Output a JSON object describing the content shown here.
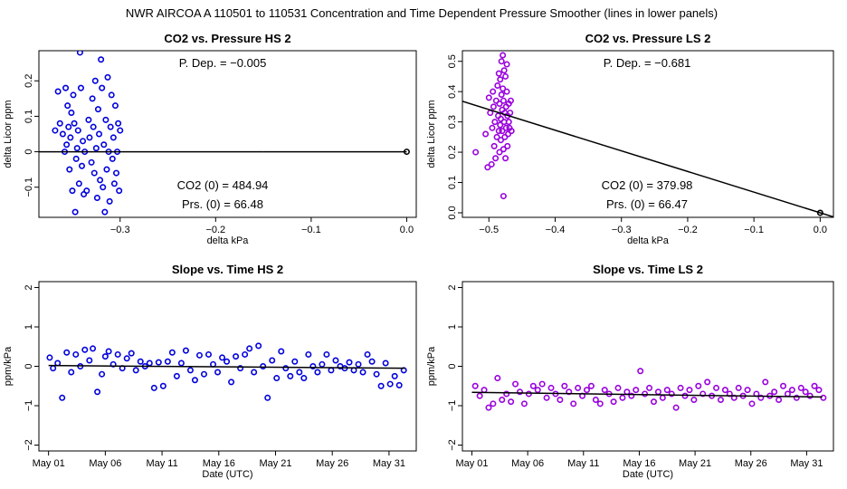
{
  "figure": {
    "title": "NWR   AIRCOA A   110501 to 110531   Concentration and Time Dependent Pressure Smoother (lines in lower panels)"
  },
  "colors": {
    "hs": "#0000dd",
    "ls": "#9900dd",
    "line": "#000000"
  },
  "chart_data": [
    {
      "id": "co2-hs",
      "type": "scatter",
      "title": "CO2 vs. Pressure HS 2",
      "xlabel": "delta kPa",
      "ylabel": "delta Licor ppm",
      "xlim": [
        -0.385,
        0.01
      ],
      "ylim": [
        -0.185,
        0.285
      ],
      "xticks": [
        -0.3,
        -0.2,
        -0.1,
        0.0
      ],
      "xtick_labels": [
        "-0.3",
        "-0.2",
        "-0.1",
        "0.0"
      ],
      "yticks": [
        -0.1,
        0.0,
        0.1,
        0.2
      ],
      "ytick_labels": [
        "-0.1",
        "0",
        "0.1",
        "0.2"
      ],
      "color": "hs",
      "annotations": {
        "pdep": "P. Dep. =  -0.005",
        "co2_0": "CO2 (0) =  484.94",
        "prs_0": "Prs. (0) =  66.48"
      },
      "fit_line": [
        [
          -0.385,
          0.0
        ],
        [
          -0.15,
          0.0
        ]
      ],
      "ref_line": [
        [
          -0.15,
          0.0
        ],
        [
          0.0,
          0.0
        ]
      ],
      "origin_point": [
        0.0,
        0.0
      ],
      "points": [
        [
          -0.368,
          0.06
        ],
        [
          -0.365,
          0.17
        ],
        [
          -0.363,
          0.08
        ],
        [
          -0.36,
          0.05
        ],
        [
          -0.358,
          0.0
        ],
        [
          -0.357,
          0.18
        ],
        [
          -0.356,
          0.02
        ],
        [
          -0.355,
          0.13
        ],
        [
          -0.354,
          0.07
        ],
        [
          -0.353,
          -0.05
        ],
        [
          -0.352,
          0.04
        ],
        [
          -0.351,
          0.11
        ],
        [
          -0.35,
          -0.11
        ],
        [
          -0.349,
          0.16
        ],
        [
          -0.348,
          0.08
        ],
        [
          -0.347,
          -0.17
        ],
        [
          -0.346,
          -0.02
        ],
        [
          -0.345,
          0.01
        ],
        [
          -0.344,
          0.06
        ],
        [
          -0.343,
          -0.09
        ],
        [
          -0.342,
          0.28
        ],
        [
          -0.341,
          0.18
        ],
        [
          -0.34,
          -0.04
        ],
        [
          -0.339,
          0.03
        ],
        [
          -0.338,
          -0.12
        ],
        [
          -0.337,
          0.0
        ],
        [
          -0.335,
          -0.11
        ],
        [
          -0.333,
          0.09
        ],
        [
          -0.332,
          0.04
        ],
        [
          -0.33,
          -0.03
        ],
        [
          -0.329,
          0.15
        ],
        [
          -0.328,
          0.07
        ],
        [
          -0.327,
          -0.06
        ],
        [
          -0.326,
          0.2
        ],
        [
          -0.325,
          0.01
        ],
        [
          -0.324,
          -0.13
        ],
        [
          -0.323,
          0.12
        ],
        [
          -0.322,
          0.05
        ],
        [
          -0.321,
          -0.08
        ],
        [
          -0.32,
          0.26
        ],
        [
          -0.319,
          0.18
        ],
        [
          -0.318,
          -0.1
        ],
        [
          -0.317,
          0.02
        ],
        [
          -0.316,
          -0.17
        ],
        [
          -0.315,
          0.09
        ],
        [
          -0.314,
          -0.05
        ],
        [
          -0.313,
          0.21
        ],
        [
          -0.312,
          0.0
        ],
        [
          -0.311,
          -0.14
        ],
        [
          -0.31,
          0.07
        ],
        [
          -0.309,
          0.16
        ],
        [
          -0.308,
          -0.02
        ],
        [
          -0.307,
          0.04
        ],
        [
          -0.306,
          -0.09
        ],
        [
          -0.305,
          0.13
        ],
        [
          -0.304,
          -0.06
        ],
        [
          -0.303,
          0.0
        ],
        [
          -0.302,
          0.08
        ],
        [
          -0.301,
          -0.11
        ],
        [
          -0.3,
          0.06
        ]
      ]
    },
    {
      "id": "co2-ls",
      "type": "scatter",
      "title": "CO2 vs. Pressure LS 2",
      "xlabel": "delta kPa",
      "ylabel": "delta Licor ppm",
      "xlim": [
        -0.54,
        0.02
      ],
      "ylim": [
        -0.015,
        0.535
      ],
      "xticks": [
        -0.5,
        -0.4,
        -0.3,
        -0.2,
        -0.1,
        0.0
      ],
      "xtick_labels": [
        "-0.5",
        "-0.4",
        "-0.3",
        "-0.2",
        "-0.1",
        "0.0"
      ],
      "yticks": [
        0.0,
        0.1,
        0.2,
        0.3,
        0.4,
        0.5
      ],
      "ytick_labels": [
        "0.0",
        "0.1",
        "0.2",
        "0.3",
        "0.4",
        "0.5"
      ],
      "color": "ls",
      "annotations": {
        "pdep": "P. Dep. =  -0.681",
        "co2_0": "CO2 (0) =  379.98",
        "prs_0": "Prs. (0) =  66.47"
      },
      "fit_line": [
        [
          -0.54,
          0.368
        ],
        [
          0.02,
          -0.0136
        ]
      ],
      "origin_point": [
        0.0,
        0.0
      ],
      "points": [
        [
          -0.52,
          0.2
        ],
        [
          -0.505,
          0.26
        ],
        [
          -0.502,
          0.15
        ],
        [
          -0.5,
          0.38
        ],
        [
          -0.498,
          0.33
        ],
        [
          -0.496,
          0.16
        ],
        [
          -0.495,
          0.28
        ],
        [
          -0.494,
          0.4
        ],
        [
          -0.493,
          0.35
        ],
        [
          -0.492,
          0.22
        ],
        [
          -0.491,
          0.3
        ],
        [
          -0.49,
          0.18
        ],
        [
          -0.489,
          0.37
        ],
        [
          -0.488,
          0.25
        ],
        [
          -0.487,
          0.42
        ],
        [
          -0.486,
          0.32
        ],
        [
          -0.485,
          0.27
        ],
        [
          -0.485,
          0.46
        ],
        [
          -0.484,
          0.2
        ],
        [
          -0.484,
          0.36
        ],
        [
          -0.483,
          0.29
        ],
        [
          -0.483,
          0.44
        ],
        [
          -0.482,
          0.31
        ],
        [
          -0.482,
          0.24
        ],
        [
          -0.481,
          0.5
        ],
        [
          -0.481,
          0.39
        ],
        [
          -0.48,
          0.34
        ],
        [
          -0.48,
          0.27
        ],
        [
          -0.479,
          0.52
        ],
        [
          -0.479,
          0.41
        ],
        [
          -0.478,
          0.21
        ],
        [
          -0.478,
          0.37
        ],
        [
          -0.477,
          0.3
        ],
        [
          -0.477,
          0.47
        ],
        [
          -0.476,
          0.33
        ],
        [
          -0.476,
          0.25
        ],
        [
          -0.475,
          0.45
        ],
        [
          -0.475,
          0.18
        ],
        [
          -0.474,
          0.28
        ],
        [
          -0.474,
          0.35
        ],
        [
          -0.473,
          0.4
        ],
        [
          -0.473,
          0.49
        ],
        [
          -0.472,
          0.32
        ],
        [
          -0.472,
          0.22
        ],
        [
          -0.471,
          0.26
        ],
        [
          -0.47,
          0.36
        ],
        [
          -0.47,
          0.3
        ],
        [
          -0.469,
          0.28
        ],
        [
          -0.468,
          0.33
        ],
        [
          -0.467,
          0.37
        ],
        [
          -0.466,
          0.27
        ],
        [
          -0.478,
          0.055
        ]
      ]
    },
    {
      "id": "slope-hs",
      "type": "scatter",
      "title": "Slope vs. Time HS 2",
      "xlabel": "Date (UTC)",
      "ylabel": "ppm/kPa",
      "xlim": [
        -0.85,
        32.4
      ],
      "ylim": [
        -2.15,
        2.15
      ],
      "xticks": [
        0,
        5,
        10,
        15,
        20,
        25,
        30
      ],
      "xtick_labels": [
        "May 01",
        "May 06",
        "May 11",
        "May 16",
        "May 21",
        "May 26",
        "May 31"
      ],
      "yticks": [
        -2,
        -1,
        0,
        1,
        2
      ],
      "ytick_labels": [
        "-2",
        "-1",
        "0",
        "1",
        "2"
      ],
      "color": "hs",
      "fit_line": [
        [
          0.0,
          0.02
        ],
        [
          31.4,
          -0.05
        ]
      ],
      "points": [
        [
          0.1,
          0.22
        ],
        [
          0.4,
          -0.05
        ],
        [
          0.8,
          0.08
        ],
        [
          1.2,
          -0.8
        ],
        [
          1.6,
          0.35
        ],
        [
          2.0,
          -0.15
        ],
        [
          2.4,
          0.3
        ],
        [
          2.8,
          0.0
        ],
        [
          3.2,
          0.42
        ],
        [
          3.6,
          0.15
        ],
        [
          3.9,
          0.45
        ],
        [
          4.3,
          -0.65
        ],
        [
          4.7,
          -0.2
        ],
        [
          5.0,
          0.25
        ],
        [
          5.3,
          0.38
        ],
        [
          5.7,
          0.05
        ],
        [
          6.1,
          0.3
        ],
        [
          6.5,
          -0.05
        ],
        [
          6.9,
          0.2
        ],
        [
          7.3,
          0.33
        ],
        [
          7.7,
          -0.1
        ],
        [
          8.1,
          0.12
        ],
        [
          8.5,
          0.0
        ],
        [
          8.9,
          0.08
        ],
        [
          9.3,
          -0.55
        ],
        [
          9.7,
          0.1
        ],
        [
          10.1,
          -0.5
        ],
        [
          10.5,
          0.12
        ],
        [
          10.9,
          0.35
        ],
        [
          11.3,
          -0.25
        ],
        [
          11.7,
          0.08
        ],
        [
          12.1,
          0.4
        ],
        [
          12.5,
          -0.1
        ],
        [
          12.9,
          -0.35
        ],
        [
          13.3,
          0.28
        ],
        [
          13.7,
          -0.2
        ],
        [
          14.1,
          0.3
        ],
        [
          14.5,
          0.05
        ],
        [
          14.9,
          -0.15
        ],
        [
          15.3,
          0.22
        ],
        [
          15.7,
          0.12
        ],
        [
          16.1,
          -0.4
        ],
        [
          16.5,
          0.25
        ],
        [
          16.9,
          -0.05
        ],
        [
          17.3,
          0.3
        ],
        [
          17.7,
          0.45
        ],
        [
          18.1,
          -0.15
        ],
        [
          18.5,
          0.52
        ],
        [
          18.9,
          0.0
        ],
        [
          19.3,
          -0.8
        ],
        [
          19.7,
          0.15
        ],
        [
          20.1,
          -0.3
        ],
        [
          20.5,
          0.38
        ],
        [
          20.9,
          -0.05
        ],
        [
          21.3,
          -0.25
        ],
        [
          21.7,
          0.12
        ],
        [
          22.1,
          -0.15
        ],
        [
          22.5,
          -0.3
        ],
        [
          22.9,
          0.3
        ],
        [
          23.3,
          0.0
        ],
        [
          23.7,
          -0.15
        ],
        [
          24.1,
          0.05
        ],
        [
          24.5,
          0.3
        ],
        [
          24.9,
          -0.1
        ],
        [
          25.3,
          0.15
        ],
        [
          25.7,
          0.0
        ],
        [
          26.1,
          -0.05
        ],
        [
          26.5,
          0.1
        ],
        [
          26.9,
          -0.1
        ],
        [
          27.3,
          0.05
        ],
        [
          27.7,
          -0.15
        ],
        [
          28.1,
          0.3
        ],
        [
          28.5,
          0.12
        ],
        [
          28.9,
          -0.2
        ],
        [
          29.3,
          -0.5
        ],
        [
          29.7,
          0.08
        ],
        [
          30.1,
          -0.45
        ],
        [
          30.5,
          -0.25
        ],
        [
          30.9,
          -0.48
        ],
        [
          31.3,
          -0.1
        ]
      ]
    },
    {
      "id": "slope-ls",
      "type": "scatter",
      "title": "Slope vs. Time LS 2",
      "xlabel": "Date (UTC)",
      "ylabel": "ppm/kPa",
      "xlim": [
        -0.85,
        32.4
      ],
      "ylim": [
        -2.15,
        2.15
      ],
      "xticks": [
        0,
        5,
        10,
        15,
        20,
        25,
        30
      ],
      "xtick_labels": [
        "May 01",
        "May 06",
        "May 11",
        "May 16",
        "May 21",
        "May 26",
        "May 31"
      ],
      "yticks": [
        -2,
        -1,
        0,
        1,
        2
      ],
      "ytick_labels": [
        "-2",
        "-1",
        "0",
        "1",
        "2"
      ],
      "color": "ls",
      "fit_line": [
        [
          0.0,
          -0.66
        ],
        [
          31.4,
          -0.78
        ]
      ],
      "points": [
        [
          0.3,
          -0.5
        ],
        [
          0.7,
          -0.75
        ],
        [
          1.1,
          -0.6
        ],
        [
          1.5,
          -1.05
        ],
        [
          1.9,
          -0.95
        ],
        [
          2.3,
          -0.3
        ],
        [
          2.7,
          -0.85
        ],
        [
          3.1,
          -0.7
        ],
        [
          3.5,
          -0.9
        ],
        [
          3.9,
          -0.45
        ],
        [
          4.3,
          -0.65
        ],
        [
          4.7,
          -0.95
        ],
        [
          5.1,
          -0.7
        ],
        [
          5.5,
          -0.5
        ],
        [
          5.9,
          -0.6
        ],
        [
          6.3,
          -0.45
        ],
        [
          6.7,
          -0.8
        ],
        [
          7.1,
          -0.55
        ],
        [
          7.5,
          -0.7
        ],
        [
          7.9,
          -0.85
        ],
        [
          8.3,
          -0.5
        ],
        [
          8.7,
          -0.65
        ],
        [
          9.1,
          -0.95
        ],
        [
          9.5,
          -0.55
        ],
        [
          9.9,
          -0.75
        ],
        [
          10.3,
          -0.6
        ],
        [
          10.7,
          -0.5
        ],
        [
          11.1,
          -0.85
        ],
        [
          11.5,
          -0.95
        ],
        [
          11.9,
          -0.6
        ],
        [
          12.3,
          -0.7
        ],
        [
          12.7,
          -0.9
        ],
        [
          13.1,
          -0.55
        ],
        [
          13.5,
          -0.8
        ],
        [
          13.9,
          -0.65
        ],
        [
          14.3,
          -0.75
        ],
        [
          14.7,
          -0.6
        ],
        [
          15.1,
          -0.12
        ],
        [
          15.5,
          -0.7
        ],
        [
          15.9,
          -0.55
        ],
        [
          16.3,
          -0.9
        ],
        [
          16.7,
          -0.65
        ],
        [
          17.1,
          -0.8
        ],
        [
          17.5,
          -0.6
        ],
        [
          17.9,
          -0.7
        ],
        [
          18.3,
          -1.05
        ],
        [
          18.7,
          -0.55
        ],
        [
          19.1,
          -0.75
        ],
        [
          19.5,
          -0.6
        ],
        [
          19.9,
          -0.85
        ],
        [
          20.3,
          -0.5
        ],
        [
          20.7,
          -0.7
        ],
        [
          21.1,
          -0.4
        ],
        [
          21.5,
          -0.75
        ],
        [
          21.9,
          -0.55
        ],
        [
          22.3,
          -0.85
        ],
        [
          22.7,
          -0.6
        ],
        [
          23.1,
          -0.7
        ],
        [
          23.5,
          -0.8
        ],
        [
          23.9,
          -0.55
        ],
        [
          24.3,
          -0.75
        ],
        [
          24.7,
          -0.6
        ],
        [
          25.1,
          -0.95
        ],
        [
          25.5,
          -0.7
        ],
        [
          25.9,
          -0.8
        ],
        [
          26.3,
          -0.4
        ],
        [
          26.7,
          -0.75
        ],
        [
          27.1,
          -0.65
        ],
        [
          27.5,
          -0.85
        ],
        [
          27.9,
          -0.5
        ],
        [
          28.3,
          -0.7
        ],
        [
          28.7,
          -0.6
        ],
        [
          29.1,
          -0.8
        ],
        [
          29.5,
          -0.55
        ],
        [
          29.9,
          -0.65
        ],
        [
          30.3,
          -0.75
        ],
        [
          30.7,
          -0.5
        ],
        [
          31.1,
          -0.6
        ],
        [
          31.5,
          -0.8
        ]
      ]
    }
  ]
}
